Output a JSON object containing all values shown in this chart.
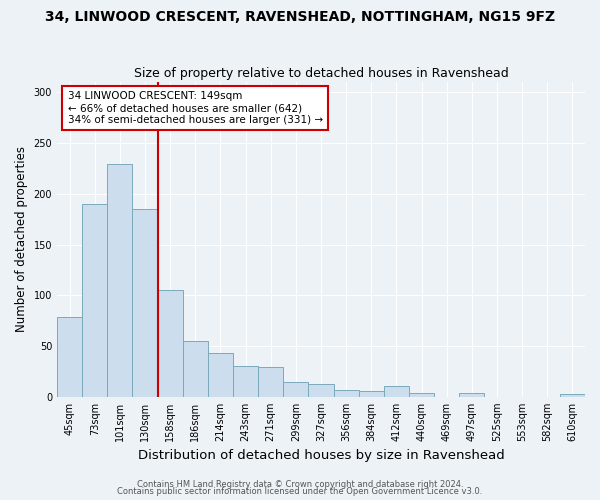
{
  "title": "34, LINWOOD CRESCENT, RAVENSHEAD, NOTTINGHAM, NG15 9FZ",
  "subtitle": "Size of property relative to detached houses in Ravenshead",
  "xlabel": "Distribution of detached houses by size in Ravenshead",
  "ylabel": "Number of detached properties",
  "categories": [
    "45sqm",
    "73sqm",
    "101sqm",
    "130sqm",
    "158sqm",
    "186sqm",
    "214sqm",
    "243sqm",
    "271sqm",
    "299sqm",
    "327sqm",
    "356sqm",
    "384sqm",
    "412sqm",
    "440sqm",
    "469sqm",
    "497sqm",
    "525sqm",
    "553sqm",
    "582sqm",
    "610sqm"
  ],
  "values": [
    79,
    190,
    229,
    185,
    105,
    55,
    43,
    30,
    29,
    15,
    13,
    7,
    6,
    11,
    4,
    0,
    4,
    0,
    0,
    0,
    3
  ],
  "bar_color": "#ccdded",
  "bar_edge_color": "#7aaabb",
  "vline_color": "#cc0000",
  "annotation_text": "34 LINWOOD CRESCENT: 149sqm\n← 66% of detached houses are smaller (642)\n34% of semi-detached houses are larger (331) →",
  "annotation_box_color": "#ffffff",
  "annotation_box_edge": "#cc0000",
  "ylim": [
    0,
    310
  ],
  "yticks": [
    0,
    50,
    100,
    150,
    200,
    250,
    300
  ],
  "footnote1": "Contains HM Land Registry data © Crown copyright and database right 2024.",
  "footnote2": "Contains public sector information licensed under the Open Government Licence v3.0.",
  "bg_color": "#edf2f7",
  "grid_color": "#ffffff",
  "title_fontsize": 10,
  "subtitle_fontsize": 9,
  "tick_fontsize": 7,
  "ylabel_fontsize": 8.5,
  "xlabel_fontsize": 9.5,
  "footnote_fontsize": 6,
  "annotation_fontsize": 7.5
}
